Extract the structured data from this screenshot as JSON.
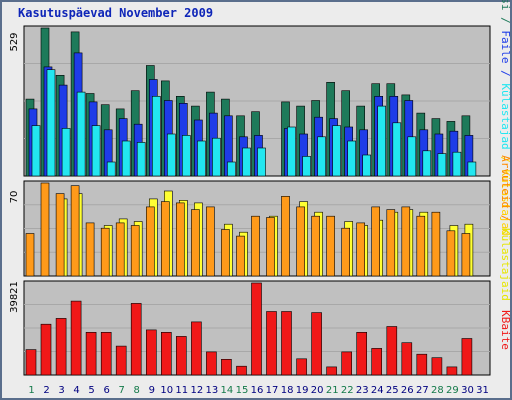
{
  "title": "Kasutuspäevad November 2009",
  "colors": {
    "frame_border": "#5a6e8c",
    "plot_bg": "#c0c0c0",
    "grid": "#a8a8a8",
    "title": "#0e25b8",
    "weekday_label": "#147a4a",
    "weekend_label": "#147a4a",
    "workday_label": "#000080"
  },
  "chart_data": [
    {
      "type": "bar",
      "ymax_label": "529",
      "ylim": [
        0,
        529
      ],
      "grid": true,
      "categories": [
        "1",
        "2",
        "3",
        "4",
        "5",
        "6",
        "7",
        "8",
        "9",
        "10",
        "11",
        "12",
        "13",
        "14",
        "15",
        "16",
        "17",
        "18",
        "19",
        "20",
        "21",
        "22",
        "23",
        "24",
        "25",
        "26",
        "27",
        "28",
        "29",
        "30",
        "31"
      ],
      "series": [
        {
          "name": "Pöördumisi",
          "color": "#1e7a5a",
          "values": [
            275,
            529,
            360,
            515,
            295,
            255,
            240,
            305,
            395,
            340,
            285,
            250,
            300,
            275,
            215,
            230,
            0,
            265,
            250,
            270,
            335,
            305,
            250,
            330,
            330,
            290,
            225,
            205,
            195,
            215,
            0
          ]
        },
        {
          "name": "Faile",
          "color": "#1e3ce8",
          "values": [
            240,
            390,
            325,
            440,
            265,
            165,
            205,
            185,
            345,
            270,
            260,
            200,
            225,
            215,
            140,
            145,
            0,
            170,
            150,
            210,
            205,
            175,
            165,
            285,
            285,
            270,
            165,
            150,
            160,
            145,
            0
          ]
        },
        {
          "name": "Külastajad",
          "color": "#22e6f0",
          "values": [
            180,
            380,
            170,
            300,
            180,
            50,
            125,
            120,
            285,
            150,
            145,
            125,
            135,
            50,
            100,
            100,
            0,
            175,
            70,
            140,
            180,
            125,
            75,
            250,
            190,
            140,
            90,
            80,
            85,
            50,
            0
          ]
        }
      ],
      "axis_label_parts": [
        {
          "text": "Pöördumisi",
          "color": "#1e7a5a"
        },
        {
          "text": " / ",
          "color": "#1e7a5a"
        },
        {
          "text": "Faile",
          "color": "#1e3ce8"
        },
        {
          "text": " / ",
          "color": "#1e3ce8"
        },
        {
          "text": "Külastajad",
          "color": "#22e6f0"
        },
        {
          "text": " / ",
          "color": "#ffd000"
        },
        {
          "text": "Külastajad",
          "color": "#ffd000"
        }
      ]
    },
    {
      "type": "bar",
      "ymax_label": "70",
      "ylim": [
        0,
        70
      ],
      "grid": true,
      "series": [
        {
          "name": "Külastajaid",
          "color": "#ffff33",
          "values": [
            0,
            0,
            58,
            62,
            0,
            38,
            43,
            41,
            58,
            64,
            57,
            55,
            0,
            39,
            33,
            0,
            45,
            0,
            56,
            48,
            0,
            41,
            38,
            42,
            48,
            50,
            48,
            0,
            38,
            39,
            0
          ]
        },
        {
          "name": "Arvuteid",
          "color": "#ff9a1a",
          "values": [
            32,
            70,
            62,
            68,
            40,
            36,
            40,
            38,
            52,
            56,
            55,
            50,
            52,
            35,
            30,
            45,
            44,
            60,
            52,
            45,
            45,
            36,
            40,
            52,
            50,
            52,
            45,
            48,
            34,
            32,
            0
          ]
        }
      ],
      "axis_label_parts": [
        {
          "text": "Arvuteid",
          "color": "#ff8a00"
        },
        {
          "text": " / ",
          "color": "#ff8a00"
        },
        {
          "text": "Külastajaid",
          "color": "#e6e600"
        }
      ]
    },
    {
      "type": "bar",
      "ymax_label": "39821",
      "ylim": [
        0,
        39821
      ],
      "grid": true,
      "series": [
        {
          "name": "KBaite",
          "color": "#f01818",
          "values": [
            11000,
            22000,
            24500,
            32000,
            18500,
            18500,
            12500,
            31000,
            19500,
            18500,
            16700,
            23000,
            10000,
            6800,
            3800,
            39821,
            27500,
            27500,
            7000,
            27000,
            3500,
            10000,
            18500,
            11500,
            21000,
            14000,
            9000,
            7500,
            3500,
            15800,
            0
          ]
        }
      ],
      "axis_label_parts": [
        {
          "text": "KBaite",
          "color": "#f01818"
        }
      ]
    }
  ],
  "x_labels": [
    {
      "text": "1",
      "weekend": true
    },
    {
      "text": "2",
      "weekend": false
    },
    {
      "text": "3",
      "weekend": false
    },
    {
      "text": "4",
      "weekend": false
    },
    {
      "text": "5",
      "weekend": false
    },
    {
      "text": "6",
      "weekend": false
    },
    {
      "text": "7",
      "weekend": true
    },
    {
      "text": "8",
      "weekend": true
    },
    {
      "text": "9",
      "weekend": false
    },
    {
      "text": "10",
      "weekend": false
    },
    {
      "text": "11",
      "weekend": false
    },
    {
      "text": "12",
      "weekend": false
    },
    {
      "text": "13",
      "weekend": false
    },
    {
      "text": "14",
      "weekend": true
    },
    {
      "text": "15",
      "weekend": true
    },
    {
      "text": "16",
      "weekend": false
    },
    {
      "text": "17",
      "weekend": false
    },
    {
      "text": "18",
      "weekend": false
    },
    {
      "text": "19",
      "weekend": false
    },
    {
      "text": "20",
      "weekend": false
    },
    {
      "text": "21",
      "weekend": true
    },
    {
      "text": "22",
      "weekend": true
    },
    {
      "text": "23",
      "weekend": false
    },
    {
      "text": "24",
      "weekend": false
    },
    {
      "text": "25",
      "weekend": false
    },
    {
      "text": "26",
      "weekend": false
    },
    {
      "text": "27",
      "weekend": false
    },
    {
      "text": "28",
      "weekend": true
    },
    {
      "text": "29",
      "weekend": true
    },
    {
      "text": "30",
      "weekend": false
    },
    {
      "text": "31",
      "weekend": false
    }
  ]
}
